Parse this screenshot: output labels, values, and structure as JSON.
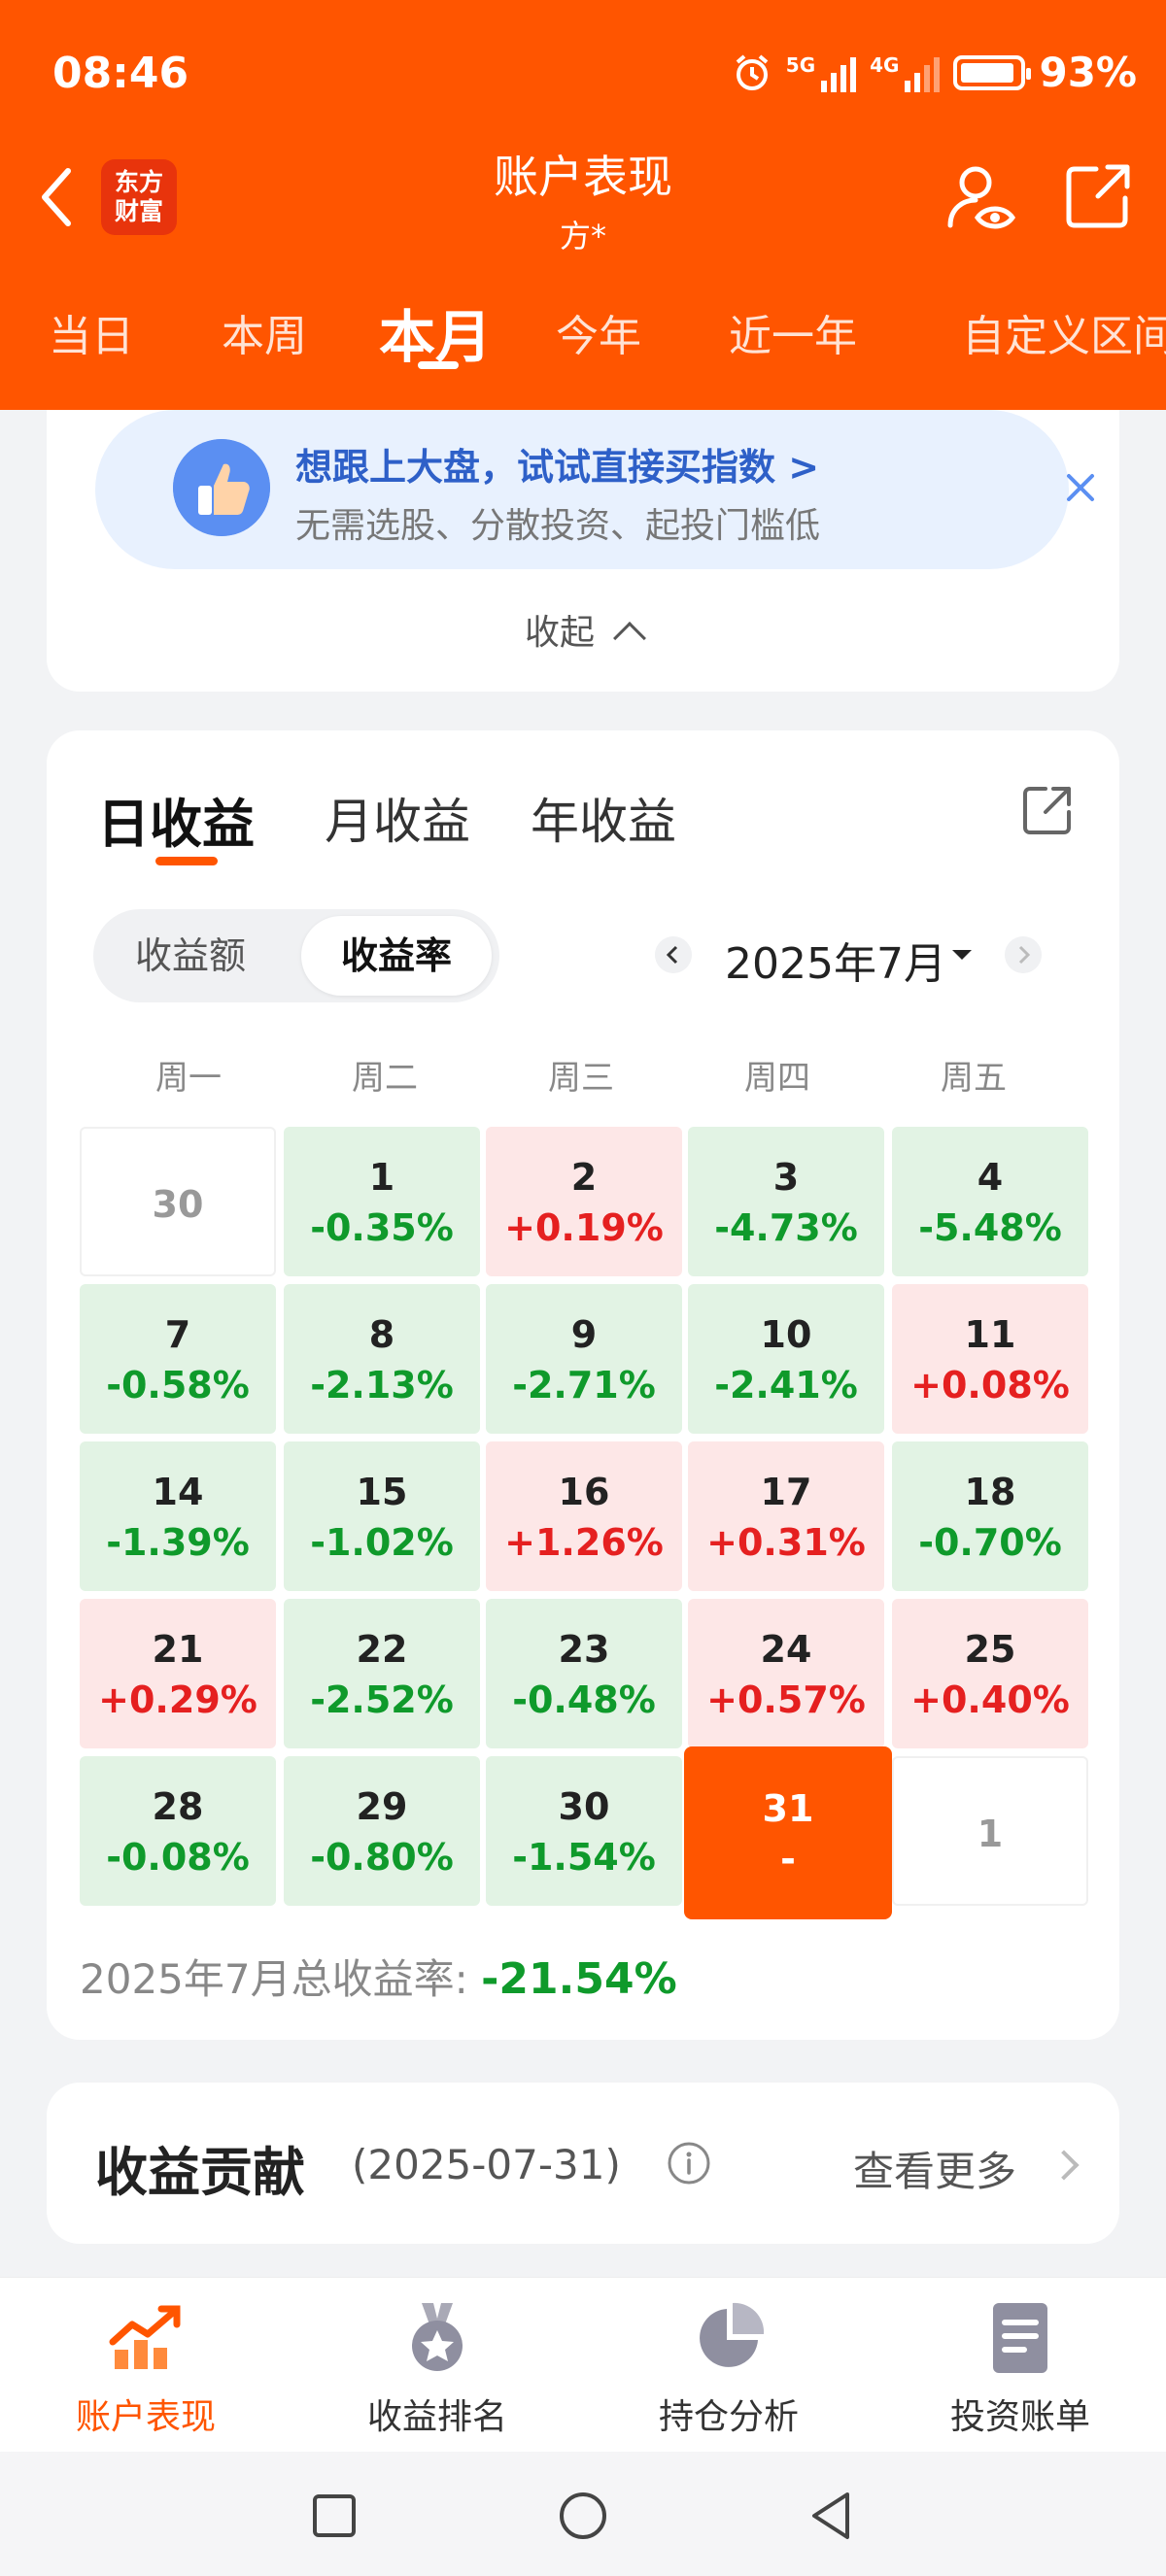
{
  "status_bar": {
    "time": "08:46",
    "battery": "93%",
    "battery_level": 0.93,
    "net1": "5G",
    "net2": "4G"
  },
  "header": {
    "logo_line1": "东方",
    "logo_line2": "财富",
    "title": "账户表现",
    "subtitle": "方*"
  },
  "period_tabs": [
    "当日",
    "本周",
    "本月",
    "今年",
    "近一年",
    "自定义区间"
  ],
  "period_active": "本月",
  "promo": {
    "title": "想跟上大盘，试试直接买指数 >",
    "desc": "无需选股、分散投资、起投门槛低",
    "collapse": "收起"
  },
  "return_tabs": [
    "日收益",
    "月收益",
    "年收益"
  ],
  "return_active": "日收益",
  "toggle": [
    "收益额",
    "收益率"
  ],
  "toggle_active": "收益率",
  "month_label": "2025年7月",
  "weekdays": [
    "周一",
    "周二",
    "周三",
    "周四",
    "周五"
  ],
  "days": [
    {
      "d": "30",
      "p": "",
      "type": "empty"
    },
    {
      "d": "1",
      "p": "-0.35%",
      "type": "green"
    },
    {
      "d": "2",
      "p": "+0.19%",
      "type": "red"
    },
    {
      "d": "3",
      "p": "-4.73%",
      "type": "green"
    },
    {
      "d": "4",
      "p": "-5.48%",
      "type": "green"
    },
    {
      "d": "7",
      "p": "-0.58%",
      "type": "green"
    },
    {
      "d": "8",
      "p": "-2.13%",
      "type": "green"
    },
    {
      "d": "9",
      "p": "-2.71%",
      "type": "green"
    },
    {
      "d": "10",
      "p": "-2.41%",
      "type": "green"
    },
    {
      "d": "11",
      "p": "+0.08%",
      "type": "red"
    },
    {
      "d": "14",
      "p": "-1.39%",
      "type": "green"
    },
    {
      "d": "15",
      "p": "-1.02%",
      "type": "green"
    },
    {
      "d": "16",
      "p": "+1.26%",
      "type": "red"
    },
    {
      "d": "17",
      "p": "+0.31%",
      "type": "red"
    },
    {
      "d": "18",
      "p": "-0.70%",
      "type": "green"
    },
    {
      "d": "21",
      "p": "+0.29%",
      "type": "red"
    },
    {
      "d": "22",
      "p": "-2.52%",
      "type": "green"
    },
    {
      "d": "23",
      "p": "-0.48%",
      "type": "green"
    },
    {
      "d": "24",
      "p": "+0.57%",
      "type": "red"
    },
    {
      "d": "25",
      "p": "+0.40%",
      "type": "red"
    },
    {
      "d": "28",
      "p": "-0.08%",
      "type": "green"
    },
    {
      "d": "29",
      "p": "-0.80%",
      "type": "green"
    },
    {
      "d": "30",
      "p": "-1.54%",
      "type": "green"
    },
    {
      "d": "31",
      "p": "-",
      "type": "today"
    },
    {
      "d": "1",
      "p": "",
      "type": "empty"
    }
  ],
  "total": {
    "label": "2025年7月总收益率: ",
    "value": "-21.54%"
  },
  "contribution": {
    "title": "收益贡献",
    "date": "(2025-07-31)",
    "more": "查看更多"
  },
  "bottom_nav": [
    {
      "label": "账户表现",
      "icon": "trend-chart-icon",
      "active": true
    },
    {
      "label": "收益排名",
      "icon": "medal-icon",
      "active": false
    },
    {
      "label": "持仓分析",
      "icon": "pie-chart-icon",
      "active": false
    },
    {
      "label": "投资账单",
      "icon": "bill-icon",
      "active": false
    }
  ],
  "colors": {
    "brand": "#ff5500",
    "loss_green": "#0f9a2b",
    "gain_red": "#e52020",
    "promo_blue": "#2e60c8"
  }
}
